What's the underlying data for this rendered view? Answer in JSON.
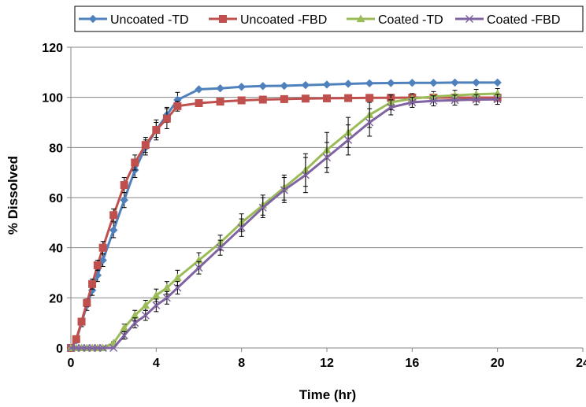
{
  "chart_data": {
    "type": "line",
    "xlabel": "Time (hr)",
    "ylabel": "% Dissolved",
    "xlim": [
      0,
      24
    ],
    "ylim": [
      0,
      120
    ],
    "xticks": [
      0,
      4,
      8,
      12,
      16,
      20,
      24
    ],
    "yticks": [
      0,
      20,
      40,
      60,
      80,
      100,
      120
    ],
    "grid": "horizontal",
    "legend_position": "top",
    "error_bars": true,
    "series": [
      {
        "name": "Uncoated -TD",
        "color": "#4F81BD",
        "marker": "diamond",
        "x": [
          0,
          0.25,
          0.5,
          0.75,
          1,
          1.25,
          1.5,
          2,
          2.5,
          3,
          3.5,
          4,
          4.5,
          5,
          6,
          7,
          8,
          9,
          10,
          11,
          12,
          13,
          14,
          15,
          16,
          17,
          18,
          19,
          20
        ],
        "y": [
          0,
          3,
          10,
          17,
          23,
          29,
          35,
          47,
          59,
          71,
          80,
          87,
          93,
          99,
          103.2,
          103.6,
          104.2,
          104.5,
          104.6,
          104.9,
          105.1,
          105.4,
          105.6,
          105.7,
          105.8,
          105.8,
          105.9,
          105.9,
          105.9
        ],
        "err": [
          0,
          1,
          1.5,
          2,
          2,
          2.5,
          2.5,
          3,
          3,
          3,
          3,
          3,
          3,
          3,
          0,
          0,
          0,
          0,
          0,
          0,
          0,
          0,
          0,
          0,
          0,
          0,
          0,
          0,
          0
        ]
      },
      {
        "name": "Uncoated -FBD",
        "color": "#C0504D",
        "marker": "square",
        "x": [
          0,
          0.25,
          0.5,
          0.75,
          1,
          1.25,
          1.5,
          2,
          2.5,
          3,
          3.5,
          4,
          4.5,
          5,
          6,
          7,
          8,
          9,
          10,
          11,
          12,
          13,
          14,
          15,
          16,
          17,
          18,
          19,
          20
        ],
        "y": [
          0,
          3.5,
          10.5,
          18,
          25.5,
          33,
          40,
          53,
          65,
          74,
          81,
          87,
          91.5,
          96.5,
          97.7,
          98.3,
          98.8,
          99.1,
          99.3,
          99.5,
          99.6,
          99.7,
          99.8,
          99.8,
          99.9,
          99.9,
          99.9,
          99.9,
          99.9
        ],
        "err": [
          0,
          0.5,
          1,
          1.5,
          2,
          2,
          2.5,
          2.5,
          3,
          3,
          3,
          4,
          4,
          2,
          0,
          0,
          0,
          0,
          0,
          0,
          0,
          0,
          0,
          0,
          0,
          0,
          0,
          0,
          0
        ]
      },
      {
        "name": "Coated -TD",
        "color": "#9BBB59",
        "marker": "triangle",
        "x": [
          0,
          0.25,
          0.5,
          0.75,
          1,
          1.25,
          1.5,
          2,
          2.5,
          3,
          3.5,
          4,
          4.5,
          5,
          6,
          7,
          8,
          9,
          10,
          11,
          12,
          13,
          14,
          15,
          16,
          17,
          18,
          19,
          20
        ],
        "y": [
          0,
          0,
          0,
          0,
          0,
          0,
          0,
          2,
          8,
          13,
          17,
          21,
          24,
          28,
          35,
          42,
          50,
          57,
          64,
          71,
          79,
          86,
          93,
          98,
          99.5,
          100.3,
          100.8,
          101.2,
          101.5
        ],
        "err": [
          0,
          0,
          0,
          0,
          0,
          0,
          0,
          0.5,
          1.5,
          2,
          2,
          2.5,
          2.5,
          3,
          3,
          3,
          3.5,
          4,
          5,
          6.5,
          7,
          6,
          5,
          3,
          2,
          2,
          2,
          2,
          2
        ]
      },
      {
        "name": "Coated -FBD",
        "color": "#8064A2",
        "marker": "x",
        "x": [
          0,
          0.25,
          0.5,
          0.75,
          1,
          1.25,
          1.5,
          2,
          2.5,
          3,
          3.5,
          4,
          4.5,
          5,
          6,
          7,
          8,
          9,
          10,
          11,
          12,
          13,
          14,
          15,
          16,
          17,
          18,
          19,
          20
        ],
        "y": [
          0,
          0,
          0,
          0,
          0,
          0,
          0,
          0,
          5,
          10,
          13,
          17,
          20,
          24,
          32,
          40,
          48,
          56,
          63,
          69,
          76,
          83,
          90,
          96,
          98,
          98.6,
          98.9,
          99.1,
          99.2
        ],
        "err": [
          0,
          0,
          0,
          0,
          0,
          0,
          0,
          0,
          1.5,
          2,
          2,
          2.5,
          2.5,
          2.5,
          2.5,
          3,
          3.5,
          4,
          5,
          7,
          6,
          6,
          5.5,
          3,
          2,
          2,
          2,
          2,
          2
        ]
      }
    ]
  }
}
